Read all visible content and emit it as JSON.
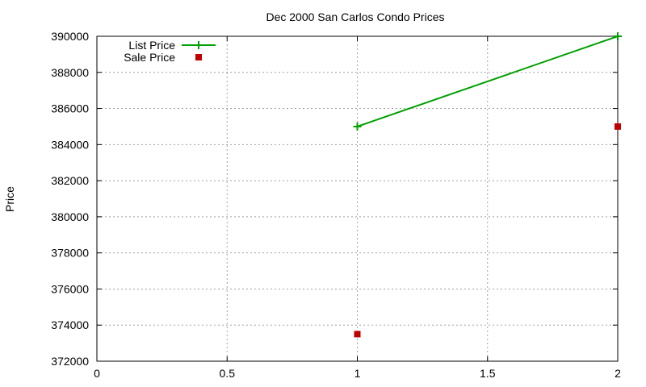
{
  "chart_data": {
    "type": "line",
    "title": "Dec 2000 San Carlos Condo Prices",
    "xlabel": "",
    "ylabel": "Price",
    "xlim": [
      0,
      2
    ],
    "ylim": [
      372000,
      390000
    ],
    "x_ticks": [
      "0",
      "0.5",
      "1",
      "1.5",
      "2"
    ],
    "y_ticks": [
      "372000",
      "374000",
      "376000",
      "378000",
      "380000",
      "382000",
      "384000",
      "386000",
      "388000",
      "390000"
    ],
    "grid": true,
    "legend_position": "top-left",
    "series": [
      {
        "name": "List Price",
        "style": "linespoints",
        "color": "#00a000",
        "x": [
          1,
          2
        ],
        "values": [
          385000,
          390000
        ]
      },
      {
        "name": "Sale Price",
        "style": "points",
        "color": "#c00000",
        "x": [
          1,
          2
        ],
        "values": [
          373500,
          385000
        ]
      }
    ]
  }
}
